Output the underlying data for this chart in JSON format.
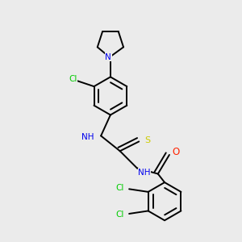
{
  "background_color": "#ebebeb",
  "bond_color": "#000000",
  "atom_colors": {
    "Cl": "#00cc00",
    "N": "#0000ee",
    "O": "#ff2200",
    "S": "#cccc00",
    "C": "#000000",
    "H": "#0000ee"
  },
  "figsize": [
    3.0,
    3.0
  ],
  "dpi": 100,
  "lw": 1.4,
  "fontsize": 7.5
}
